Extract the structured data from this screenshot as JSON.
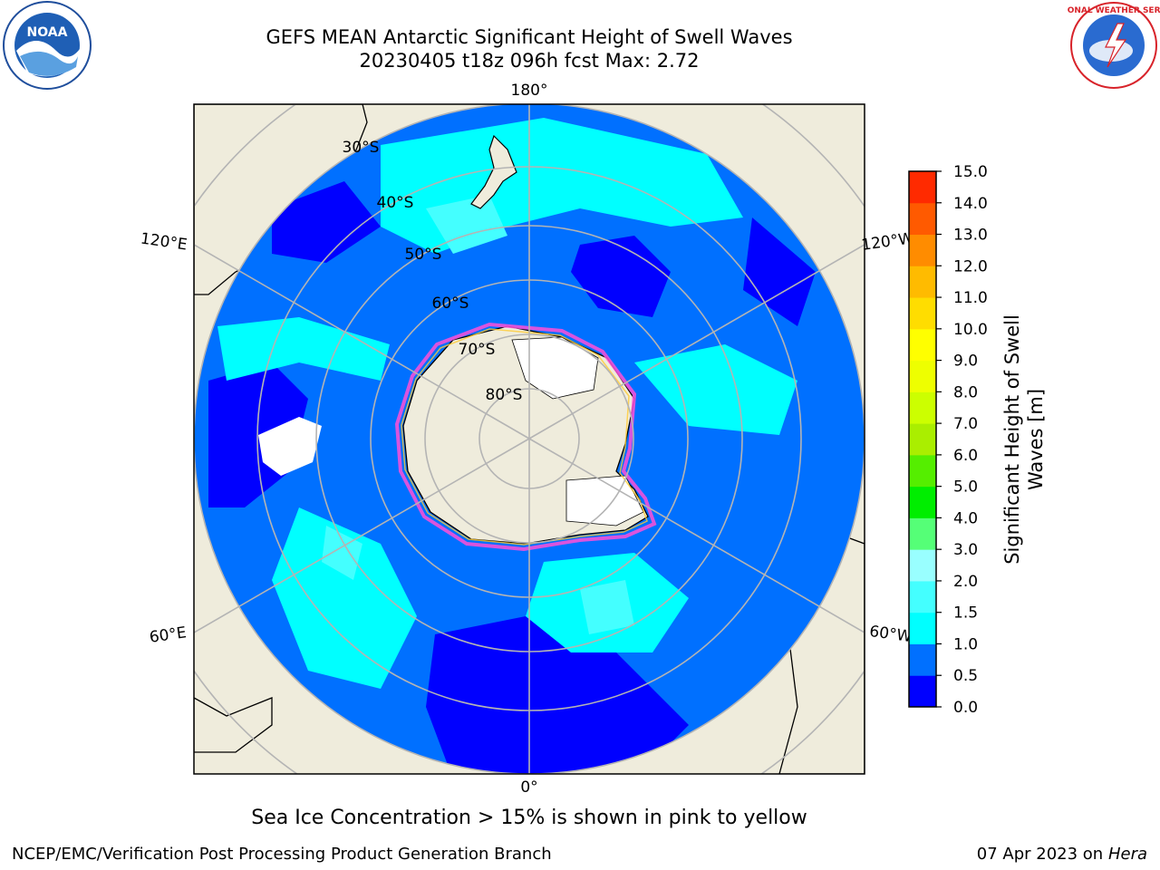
{
  "title_line1": "GEFS MEAN Antarctic Significant Height of Swell Waves",
  "title_line2": "20230405 t18z 096h fcst   Max: 2.72",
  "logos": {
    "left": "noaa-logo",
    "right": "national-weather-service-logo"
  },
  "map": {
    "projection": "south-polar-stereographic",
    "longitude_labels": [
      "180°",
      "120°E",
      "120°W",
      "60°E",
      "60°W",
      "0°"
    ],
    "latitude_labels": [
      "30°S",
      "40°S",
      "50°S",
      "60°S",
      "70°S",
      "80°S"
    ],
    "colors": {
      "land": "#efecdc",
      "ice_sheet": "#ffffff",
      "sea_ice_edge": "#ff4fd8",
      "grid": "#b4b4b4"
    }
  },
  "colorbar": {
    "label_line1": "Significant Height of Swell",
    "label_line2": "Waves [m]",
    "ticks": [
      "0.0",
      "0.5",
      "1.0",
      "1.5",
      "2.0",
      "3.0",
      "4.0",
      "5.0",
      "6.0",
      "7.0",
      "8.0",
      "9.0",
      "10.0",
      "11.0",
      "12.0",
      "13.0",
      "14.0",
      "15.0"
    ],
    "colors": [
      "#0000ff",
      "#0070ff",
      "#00ffff",
      "#44ffff",
      "#99ffff",
      "#55ff77",
      "#00ee00",
      "#55ee00",
      "#aaee00",
      "#ccff00",
      "#eeff00",
      "#ffff00",
      "#ffdd00",
      "#ffbb00",
      "#ff8c00",
      "#ff5a00",
      "#ff2a00",
      "#ff0000"
    ]
  },
  "sea_ice_note": "Sea Ice Concentration > 15% is shown in pink to yellow",
  "footer_left": "NCEP/EMC/Verification Post Processing Product Generation Branch",
  "footer_date": "07 Apr 2023 on ",
  "footer_machine": "Hera"
}
